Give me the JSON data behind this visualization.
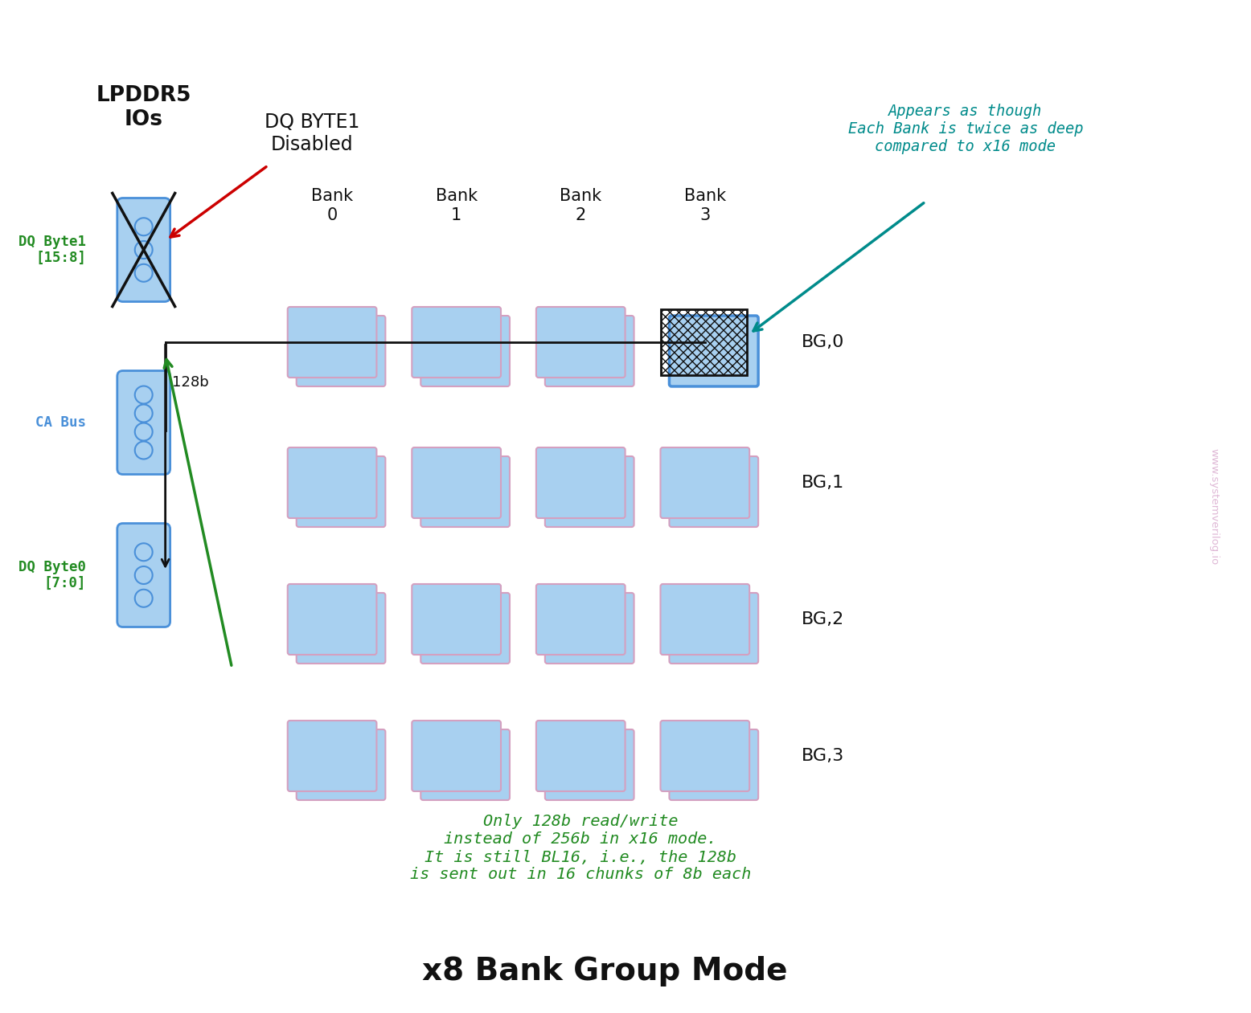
{
  "title": "x8 Bank Group Mode",
  "title_fontsize": 28,
  "bg_color": "#ffffff",
  "header_text": "LPDDR5\nIOs",
  "dq_byte1_label": "DQ Byte1\n[15:8]",
  "ca_bus_label": "CA Bus",
  "dq_byte0_label": "DQ Byte0\n[7:0]",
  "disabled_label": "DQ BYTE1\nDisabled",
  "annotation_text": "Appears as though\nEach Bank is twice as deep\ncompared to x16 mode",
  "bottom_text": "Only 128b read/write\ninstead of 256b in x16 mode.\nIt is still BL16, i.e., the 128b\nis sent out in 16 chunks of 8b each",
  "bank_labels": [
    "Bank\n0",
    "Bank\n1",
    "Bank\n2",
    "Bank\n3"
  ],
  "bg_labels": [
    "BG,0",
    "BG,1",
    "BG,2",
    "BG,3"
  ],
  "bus_label": "128b",
  "light_blue": "#a8d0f0",
  "blue_outline": "#4a90d9",
  "pink_outline": "#d4a0c0",
  "green_color": "#228B22",
  "teal_color": "#008B8B",
  "red_color": "#cc0000",
  "black_color": "#111111",
  "watermark": "www.systemverilog.io",
  "watermark_color": "#d4a0c8"
}
